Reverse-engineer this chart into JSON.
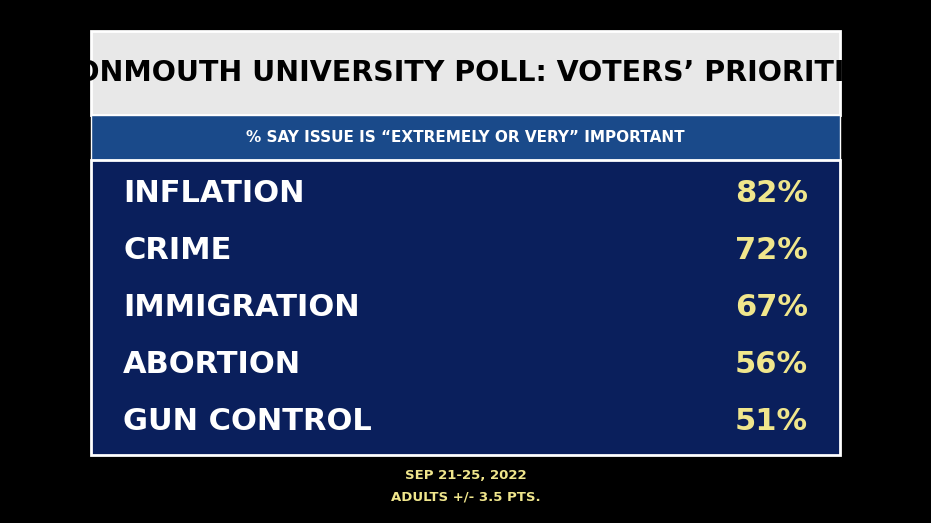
{
  "title": "MONMOUTH UNIVERSITY POLL: VOTERS’ PRIORITIES",
  "subtitle": "% SAY ISSUE IS “EXTREMELY OR VERY” IMPORTANT",
  "items": [
    "INFLATION",
    "CRIME",
    "IMMIGRATION",
    "ABORTION",
    "GUN CONTROL"
  ],
  "values": [
    "82%",
    "72%",
    "67%",
    "56%",
    "51%"
  ],
  "footnote_line1": "SEP 21-25, 2022",
  "footnote_line2": "ADULTS +/- 3.5 PTS.",
  "bg_black": "#000000",
  "bg_title": "#e8e8e8",
  "bg_subtitle": "#1a4a8a",
  "bg_main": "#0a1f5c",
  "title_color": "#000000",
  "subtitle_color": "#ffffff",
  "item_color": "#ffffff",
  "value_color": "#f0e68c",
  "footnote_color": "#f0e68c",
  "border_color": "#ffffff"
}
